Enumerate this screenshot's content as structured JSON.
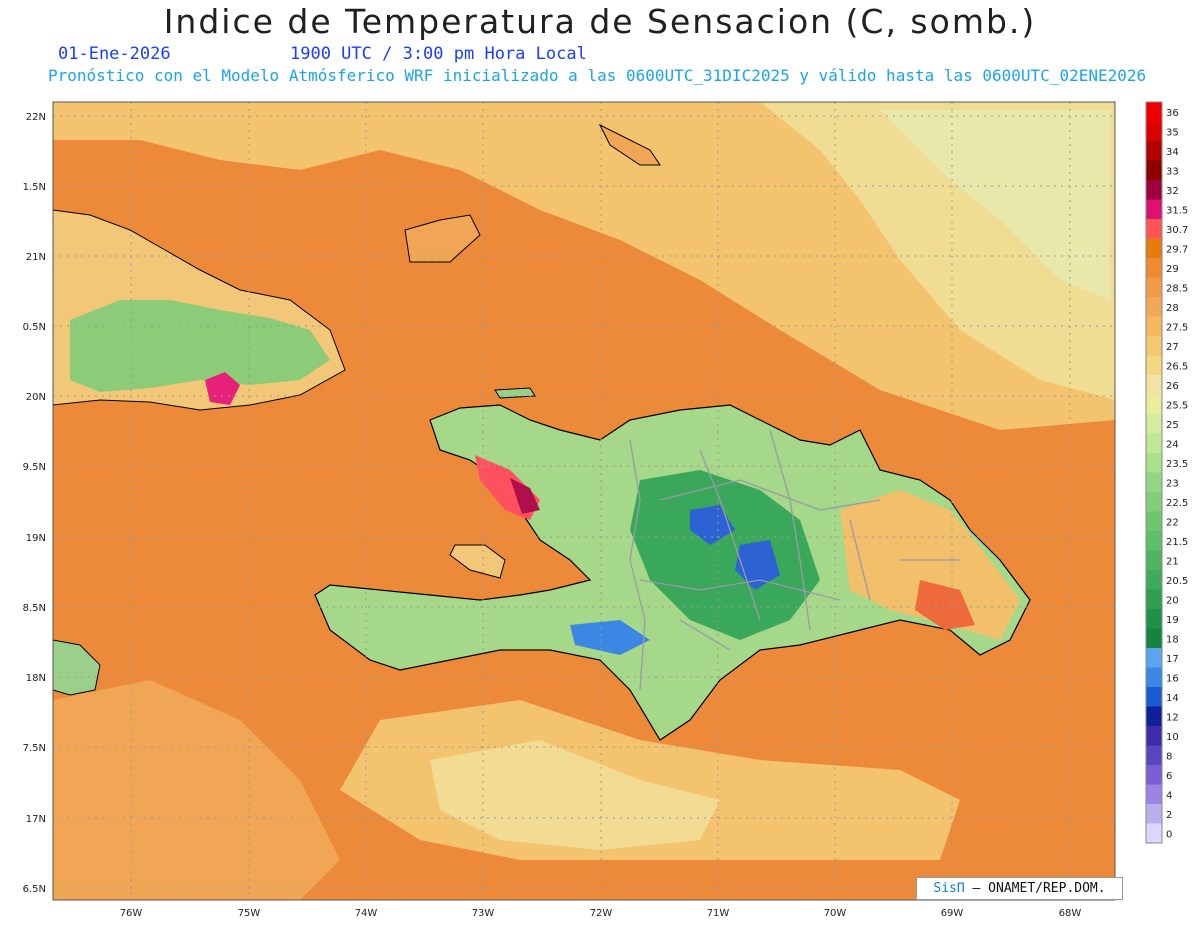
{
  "header": {
    "title": "Indice de Temperatura de Sensacion (C, somb.)",
    "date": "01-Ene-2026",
    "time": "1900 UTC / 3:00 pm Hora Local",
    "model_info": "Pronóstico con el Modelo Atmósferico WRF inicializado a las 0600UTC_31DIC2025 y válido hasta las  0600UTC_02ENE2026"
  },
  "map": {
    "lat_labels": [
      "22N",
      "1.5N",
      "21N",
      "0.5N",
      "20N",
      "9.5N",
      "19N",
      "8.5N",
      "18N",
      "7.5N",
      "17N",
      "6.5N"
    ],
    "lon_labels": [
      "76W",
      "75W",
      "74W",
      "73W",
      "72W",
      "71W",
      "70W",
      "69W",
      "68W"
    ],
    "colors": {
      "ocean": "#ec8a3a",
      "border": "#000000",
      "province": "#9a9aa8"
    }
  },
  "legend": {
    "values": [
      "36",
      "35",
      "34",
      "33",
      "32",
      "31.5",
      "30.7",
      "29.7",
      "29",
      "28.5",
      "28",
      "27.5",
      "27",
      "26.5",
      "26",
      "25.5",
      "25",
      "24",
      "23.5",
      "23",
      "22.5",
      "22",
      "21.5",
      "21",
      "20.5",
      "20",
      "19",
      "18",
      "17",
      "16",
      "14",
      "12",
      "10",
      "8",
      "6",
      "4",
      "2",
      "0"
    ],
    "colors": [
      "#f00000",
      "#dc0000",
      "#b40000",
      "#8c0000",
      "#a0003c",
      "#e0106e",
      "#ff5555",
      "#e87a10",
      "#ee8a30",
      "#f09a48",
      "#f2a858",
      "#f4b860",
      "#f4c86e",
      "#f2d880",
      "#f0e4a4",
      "#e8ee9a",
      "#d4eca0",
      "#c0e698",
      "#aadf8c",
      "#94d682",
      "#82ce7a",
      "#70c670",
      "#5fbe68",
      "#4eb462",
      "#3eaa5a",
      "#2e9e50",
      "#1e9248",
      "#158440",
      "#5aa4f0",
      "#3c86e4",
      "#1c5cd2",
      "#10209a",
      "#3c2caa",
      "#5c44be",
      "#7a5ed4",
      "#9c84e4",
      "#bab0f0",
      "#dcd8fa"
    ]
  },
  "credit": {
    "logo": "SisΠ",
    "text": " – ONAMET/REP.DOM."
  }
}
